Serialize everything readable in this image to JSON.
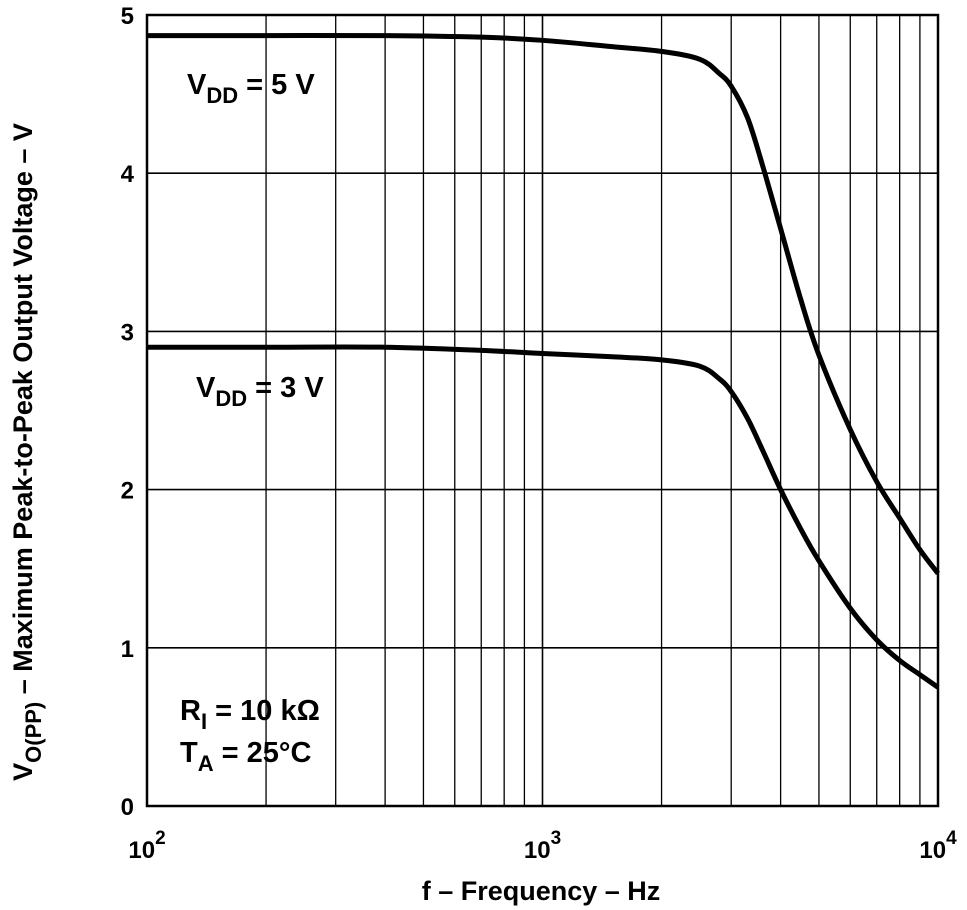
{
  "chart_data": {
    "type": "line",
    "xscale": "log",
    "xlim": [
      100,
      10000
    ],
    "ylim": [
      0,
      5
    ],
    "grid": true,
    "xlabel": "f – Frequency – Hz",
    "ylabel_main": "V",
    "ylabel_sub": "O(PP)",
    "ylabel_rest": " – Maximum Peak-to-Peak Output Voltage – V",
    "x_ticks": [
      {
        "value": 100,
        "base": "10",
        "exp": "2"
      },
      {
        "value": 1000,
        "base": "10",
        "exp": "3"
      },
      {
        "value": 10000,
        "base": "10",
        "exp": "4"
      }
    ],
    "y_ticks": [
      {
        "value": 0,
        "label": "0"
      },
      {
        "value": 1,
        "label": "1"
      },
      {
        "value": 2,
        "label": "2"
      },
      {
        "value": 3,
        "label": "3"
      },
      {
        "value": 4,
        "label": "4"
      },
      {
        "value": 5,
        "label": "5"
      }
    ],
    "series": [
      {
        "name": "VDD = 5 V",
        "label_main": "V",
        "label_sub": "DD",
        "label_rest": " = 5 V",
        "x": [
          100,
          200,
          400,
          700,
          1000,
          1500,
          2000,
          2500,
          2800,
          3000,
          3300,
          3600,
          4000,
          4500,
          5000,
          6000,
          7000,
          8000,
          9000,
          10000
        ],
        "y": [
          4.87,
          4.87,
          4.87,
          4.86,
          4.84,
          4.8,
          4.77,
          4.72,
          4.63,
          4.55,
          4.35,
          4.05,
          3.65,
          3.2,
          2.85,
          2.38,
          2.05,
          1.82,
          1.62,
          1.47
        ]
      },
      {
        "name": "VDD = 3 V",
        "label_main": "V",
        "label_sub": "DD",
        "label_rest": " = 3 V",
        "x": [
          100,
          200,
          400,
          700,
          1000,
          1500,
          2000,
          2500,
          2800,
          3000,
          3300,
          3600,
          4000,
          4500,
          5000,
          6000,
          7000,
          8000,
          9000,
          10000
        ],
        "y": [
          2.9,
          2.9,
          2.9,
          2.88,
          2.86,
          2.84,
          2.82,
          2.78,
          2.7,
          2.62,
          2.45,
          2.25,
          2.0,
          1.75,
          1.55,
          1.25,
          1.05,
          0.92,
          0.83,
          0.75
        ]
      }
    ],
    "annotation": {
      "line1_main": "R",
      "line1_sub": "I",
      "line1_rest": " = 10 kΩ",
      "line2_main": "T",
      "line2_sub": "A",
      "line2_rest": " = 25°C"
    }
  }
}
